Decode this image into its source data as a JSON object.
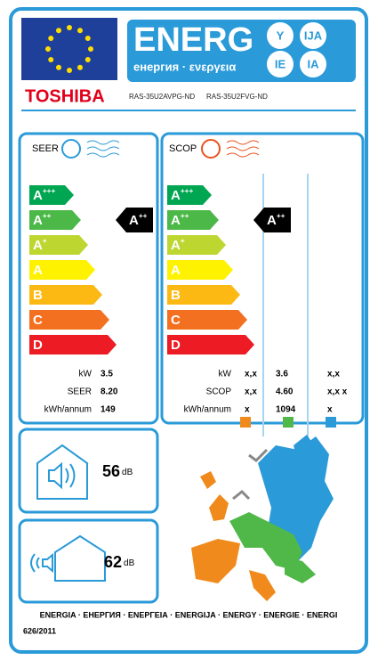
{
  "header": {
    "energy": "ENERG",
    "energy_alt": "енергия · ενεργεια",
    "suffixes": [
      "Y",
      "IJA",
      "IE",
      "IA"
    ]
  },
  "supplier": "TOSHIBA",
  "models": [
    "RAS-35U2AVPG-ND",
    "RAS-35U2FVG-ND"
  ],
  "cooling": {
    "title": "SEER",
    "classes": [
      {
        "letter": "A",
        "sup": "+++"
      },
      {
        "letter": "A",
        "sup": "++"
      },
      {
        "letter": "A",
        "sup": "+"
      },
      {
        "letter": "A"
      },
      {
        "letter": "B"
      },
      {
        "letter": "C"
      },
      {
        "letter": "D"
      }
    ],
    "rating": {
      "letter": "A",
      "sup": "++"
    },
    "rows": [
      {
        "label": "kW",
        "value": "3.5"
      },
      {
        "label": "SEER",
        "value": "8.20"
      },
      {
        "label": "kWh/annum",
        "value": "149"
      }
    ]
  },
  "heating": {
    "title": "SCOP",
    "classes": [
      {
        "letter": "A",
        "sup": "+++"
      },
      {
        "letter": "A",
        "sup": "++"
      },
      {
        "letter": "A",
        "sup": "+"
      },
      {
        "letter": "A"
      },
      {
        "letter": "B"
      },
      {
        "letter": "C"
      },
      {
        "letter": "D"
      }
    ],
    "rating": {
      "letter": "A",
      "sup": "++"
    },
    "rows": [
      {
        "label": "kW",
        "values": [
          "x,x",
          "3.6",
          "x,x"
        ]
      },
      {
        "label": "SCOP",
        "values": [
          "x,x",
          "4.60",
          "x,x x"
        ]
      },
      {
        "label": "kWh/annum",
        "values": [
          "x",
          "1094",
          "x"
        ]
      }
    ]
  },
  "noise": [
    {
      "value": "56",
      "unit": "dB"
    },
    {
      "value": "62",
      "unit": "dB"
    }
  ],
  "footer": {
    "languages": "ENERGIA · ЕНЕРГИЯ · ΕΝΕΡΓΕΙΑ · ENERGIJA · ENERGY · ENERGIE · ENERGI",
    "regulation": "626/2011"
  }
}
